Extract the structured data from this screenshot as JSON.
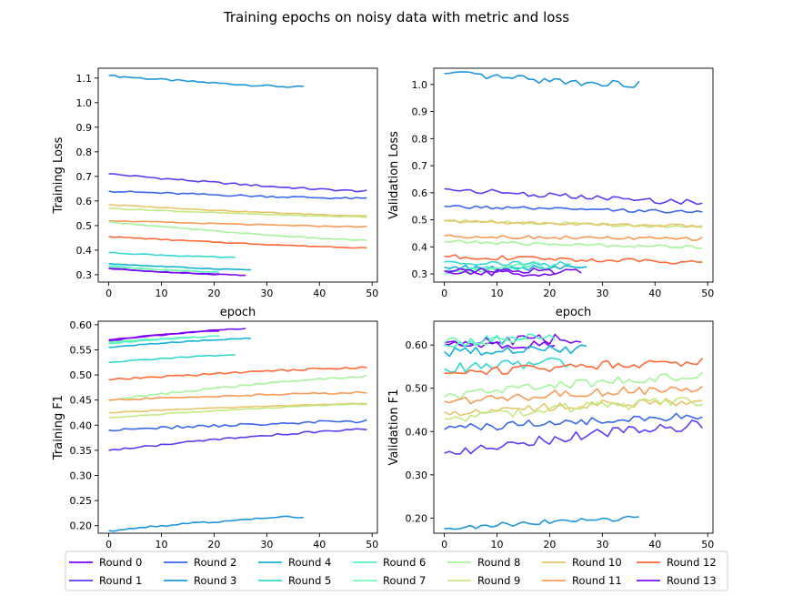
{
  "title": "Training epochs on noisy data with metric and loss",
  "palette": {
    "Round 0": "#8000ff",
    "Round 1": "#5a3ef4",
    "Round 2": "#3b68ec",
    "Round 3": "#1e96de",
    "Round 4": "#14b2d8",
    "Round 5": "#34d8d0",
    "Round 6": "#4ff2c4",
    "Round 7": "#76fbb2",
    "Round 8": "#a4f59a",
    "Round 9": "#c4e882",
    "Round 10": "#e8c46a",
    "Round 11": "#fb9a58",
    "Round 12": "#ff6a3a",
    "Round 13": "#7a10ef"
  },
  "legend": {
    "position": "bottom",
    "entries": [
      "Round 0",
      "Round 1",
      "Round 2",
      "Round 3",
      "Round 4",
      "Round 5",
      "Round 6",
      "Round 7",
      "Round 8",
      "Round 9",
      "Round 10",
      "Round 11",
      "Round 12",
      "Round 13"
    ]
  },
  "chart_data": [
    {
      "type": "line",
      "xlabel": "epoch",
      "ylabel": "Training Loss",
      "xlim": [
        -2,
        51
      ],
      "ylim": [
        0.27,
        1.14
      ],
      "xticks": [
        0,
        10,
        20,
        30,
        40,
        50
      ],
      "yticks": [
        0.3,
        0.4,
        0.5,
        0.6,
        0.7,
        0.8,
        0.9,
        1.0,
        1.1
      ],
      "grid": false,
      "series": [
        {
          "name": "Round 3",
          "x": [
            0,
            37
          ],
          "y": [
            1.11,
            1.063
          ],
          "noise": 0.004
        },
        {
          "name": "Round 1",
          "x": [
            0,
            49
          ],
          "y": [
            0.71,
            0.64
          ],
          "noise": 0.004
        },
        {
          "name": "Round 2",
          "x": [
            0,
            49
          ],
          "y": [
            0.64,
            0.61
          ],
          "noise": 0.004
        },
        {
          "name": "Round 10",
          "x": [
            0,
            49
          ],
          "y": [
            0.585,
            0.54
          ],
          "noise": 0.002
        },
        {
          "name": "Round 9",
          "x": [
            0,
            49
          ],
          "y": [
            0.57,
            0.535
          ],
          "noise": 0.002
        },
        {
          "name": "Round 11",
          "x": [
            0,
            49
          ],
          "y": [
            0.52,
            0.495
          ],
          "noise": 0.002
        },
        {
          "name": "Round 8",
          "x": [
            0,
            49
          ],
          "y": [
            0.515,
            0.44
          ],
          "noise": 0.002
        },
        {
          "name": "Round 12",
          "x": [
            0,
            49
          ],
          "y": [
            0.455,
            0.41
          ],
          "noise": 0.002
        },
        {
          "name": "Round 5",
          "x": [
            0,
            24
          ],
          "y": [
            0.39,
            0.37
          ],
          "noise": 0.002
        },
        {
          "name": "Round 4",
          "x": [
            0,
            27
          ],
          "y": [
            0.345,
            0.32
          ],
          "noise": 0.002
        },
        {
          "name": "Round 6",
          "x": [
            0,
            21
          ],
          "y": [
            0.335,
            0.31
          ],
          "noise": 0.002
        },
        {
          "name": "Round 7",
          "x": [
            0,
            16
          ],
          "y": [
            0.33,
            0.315
          ],
          "noise": 0.002
        },
        {
          "name": "Round 0",
          "x": [
            0,
            21
          ],
          "y": [
            0.325,
            0.302
          ],
          "noise": 0.002
        },
        {
          "name": "Round 13",
          "x": [
            0,
            26
          ],
          "y": [
            0.325,
            0.298
          ],
          "noise": 0.002
        }
      ]
    },
    {
      "type": "line",
      "xlabel": "epoch",
      "ylabel": "Validation Loss",
      "xlim": [
        -2,
        51
      ],
      "ylim": [
        0.27,
        1.06
      ],
      "xticks": [
        0,
        10,
        20,
        30,
        40,
        50
      ],
      "yticks": [
        0.3,
        0.4,
        0.5,
        0.6,
        0.7,
        0.8,
        0.9,
        1.0
      ],
      "grid": false,
      "series": [
        {
          "name": "Round 3",
          "x": [
            0,
            37
          ],
          "y": [
            1.04,
            1.0
          ],
          "noise": 0.012
        },
        {
          "name": "Round 1",
          "x": [
            0,
            49
          ],
          "y": [
            0.615,
            0.565
          ],
          "noise": 0.01
        },
        {
          "name": "Round 2",
          "x": [
            0,
            49
          ],
          "y": [
            0.55,
            0.53
          ],
          "noise": 0.006
        },
        {
          "name": "Round 9",
          "x": [
            0,
            49
          ],
          "y": [
            0.5,
            0.475
          ],
          "noise": 0.006
        },
        {
          "name": "Round 10",
          "x": [
            0,
            49
          ],
          "y": [
            0.495,
            0.478
          ],
          "noise": 0.006
        },
        {
          "name": "Round 11",
          "x": [
            0,
            49
          ],
          "y": [
            0.44,
            0.43
          ],
          "noise": 0.006
        },
        {
          "name": "Round 8",
          "x": [
            0,
            49
          ],
          "y": [
            0.42,
            0.4
          ],
          "noise": 0.006
        },
        {
          "name": "Round 12",
          "x": [
            0,
            49
          ],
          "y": [
            0.365,
            0.345
          ],
          "noise": 0.008
        },
        {
          "name": "Round 5",
          "x": [
            0,
            24
          ],
          "y": [
            0.345,
            0.335
          ],
          "noise": 0.01
        },
        {
          "name": "Round 4",
          "x": [
            0,
            27
          ],
          "y": [
            0.325,
            0.32
          ],
          "noise": 0.01
        },
        {
          "name": "Round 6",
          "x": [
            0,
            21
          ],
          "y": [
            0.31,
            0.33
          ],
          "noise": 0.012
        },
        {
          "name": "Round 7",
          "x": [
            0,
            16
          ],
          "y": [
            0.3,
            0.33
          ],
          "noise": 0.012
        },
        {
          "name": "Round 0",
          "x": [
            0,
            21
          ],
          "y": [
            0.31,
            0.3
          ],
          "noise": 0.012
        },
        {
          "name": "Round 13",
          "x": [
            0,
            26
          ],
          "y": [
            0.31,
            0.31
          ],
          "noise": 0.012
        }
      ]
    },
    {
      "type": "line",
      "xlabel": "",
      "ylabel": "Training F1",
      "xlim": [
        -2,
        51
      ],
      "ylim": [
        0.185,
        0.607
      ],
      "xticks": [
        0,
        10,
        20,
        30,
        40,
        50
      ],
      "yticks": [
        0.2,
        0.25,
        0.3,
        0.35,
        0.4,
        0.45,
        0.5,
        0.55,
        0.6
      ],
      "grid": false,
      "series": [
        {
          "name": "Round 13",
          "x": [
            0,
            26
          ],
          "y": [
            0.57,
            0.592
          ],
          "noise": 0.001
        },
        {
          "name": "Round 0",
          "x": [
            0,
            21
          ],
          "y": [
            0.568,
            0.588
          ],
          "noise": 0.001
        },
        {
          "name": "Round 7",
          "x": [
            0,
            16
          ],
          "y": [
            0.565,
            0.575
          ],
          "noise": 0.001
        },
        {
          "name": "Round 6",
          "x": [
            0,
            21
          ],
          "y": [
            0.563,
            0.577
          ],
          "noise": 0.001
        },
        {
          "name": "Round 4",
          "x": [
            0,
            27
          ],
          "y": [
            0.555,
            0.573
          ],
          "noise": 0.001
        },
        {
          "name": "Round 5",
          "x": [
            0,
            24
          ],
          "y": [
            0.525,
            0.54
          ],
          "noise": 0.001
        },
        {
          "name": "Round 12",
          "x": [
            0,
            49
          ],
          "y": [
            0.49,
            0.515
          ],
          "noise": 0.002
        },
        {
          "name": "Round 8",
          "x": [
            0,
            49
          ],
          "y": [
            0.45,
            0.497
          ],
          "noise": 0.002
        },
        {
          "name": "Round 11",
          "x": [
            0,
            49
          ],
          "y": [
            0.45,
            0.465
          ],
          "noise": 0.002
        },
        {
          "name": "Round 10",
          "x": [
            0,
            49
          ],
          "y": [
            0.425,
            0.443
          ],
          "noise": 0.001
        },
        {
          "name": "Round 9",
          "x": [
            0,
            49
          ],
          "y": [
            0.415,
            0.442
          ],
          "noise": 0.001
        },
        {
          "name": "Round 2",
          "x": [
            0,
            49
          ],
          "y": [
            0.39,
            0.408
          ],
          "noise": 0.003
        },
        {
          "name": "Round 1",
          "x": [
            0,
            49
          ],
          "y": [
            0.35,
            0.392
          ],
          "noise": 0.002
        },
        {
          "name": "Round 3",
          "x": [
            0,
            37
          ],
          "y": [
            0.19,
            0.218
          ],
          "noise": 0.002
        }
      ]
    },
    {
      "type": "line",
      "xlabel": "",
      "ylabel": "Validation F1",
      "xlim": [
        -2,
        51
      ],
      "ylim": [
        0.165,
        0.655
      ],
      "xticks": [
        0,
        10,
        20,
        30,
        40,
        50
      ],
      "yticks": [
        0.2,
        0.3,
        0.4,
        0.5,
        0.6
      ],
      "grid": false,
      "series": [
        {
          "name": "Round 0",
          "x": [
            0,
            21
          ],
          "y": [
            0.6,
            0.6
          ],
          "noise": 0.01
        },
        {
          "name": "Round 13",
          "x": [
            0,
            26
          ],
          "y": [
            0.605,
            0.615
          ],
          "noise": 0.012
        },
        {
          "name": "Round 7",
          "x": [
            0,
            16
          ],
          "y": [
            0.605,
            0.615
          ],
          "noise": 0.012
        },
        {
          "name": "Round 6",
          "x": [
            0,
            21
          ],
          "y": [
            0.6,
            0.62
          ],
          "noise": 0.012
        },
        {
          "name": "Round 4",
          "x": [
            0,
            27
          ],
          "y": [
            0.585,
            0.59
          ],
          "noise": 0.012
        },
        {
          "name": "Round 5",
          "x": [
            0,
            24
          ],
          "y": [
            0.545,
            0.56
          ],
          "noise": 0.012
        },
        {
          "name": "Round 12",
          "x": [
            0,
            49
          ],
          "y": [
            0.535,
            0.562
          ],
          "noise": 0.01
        },
        {
          "name": "Round 8",
          "x": [
            0,
            49
          ],
          "y": [
            0.48,
            0.528
          ],
          "noise": 0.01
        },
        {
          "name": "Round 11",
          "x": [
            0,
            49
          ],
          "y": [
            0.47,
            0.5
          ],
          "noise": 0.01
        },
        {
          "name": "Round 10",
          "x": [
            0,
            49
          ],
          "y": [
            0.445,
            0.47
          ],
          "noise": 0.01
        },
        {
          "name": "Round 9",
          "x": [
            0,
            49
          ],
          "y": [
            0.43,
            0.47
          ],
          "noise": 0.012
        },
        {
          "name": "Round 2",
          "x": [
            0,
            49
          ],
          "y": [
            0.405,
            0.435
          ],
          "noise": 0.01
        },
        {
          "name": "Round 1",
          "x": [
            0,
            49
          ],
          "y": [
            0.35,
            0.415
          ],
          "noise": 0.012
        },
        {
          "name": "Round 3",
          "x": [
            0,
            37
          ],
          "y": [
            0.175,
            0.2
          ],
          "noise": 0.006
        }
      ]
    }
  ]
}
